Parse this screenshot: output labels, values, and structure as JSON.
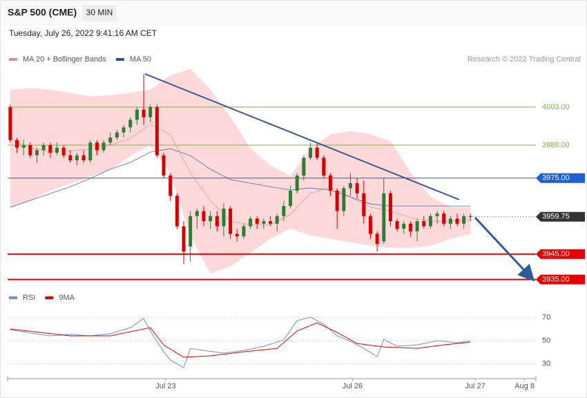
{
  "header": {
    "title": "S&P 500 (CME)",
    "interval": "30 MIN",
    "timestamp": "Tuesday, July 26, 2022 9:41:16 AM CET"
  },
  "chart_data": [
    {
      "type": "candlestick",
      "credit": "Research © 2022 Trading Central",
      "xlim": [
        -0.4,
        78.8
      ],
      "ylim": [
        3933.5,
        4018
      ],
      "up_color": "#2e7d32",
      "down_color": "#d50000",
      "candles": {
        "x": [
          0,
          1,
          2,
          3,
          4,
          5,
          6,
          7,
          8,
          9,
          10,
          11,
          12,
          13,
          14,
          15,
          16,
          17,
          18,
          19,
          20,
          21,
          22,
          23,
          24,
          25,
          26,
          27,
          28,
          29,
          30,
          31,
          32,
          33,
          34,
          35,
          36,
          37,
          38,
          39,
          40,
          41,
          42,
          43,
          44,
          45,
          46,
          47,
          48,
          49,
          50,
          51,
          52,
          53,
          54,
          55,
          56,
          57,
          58,
          59,
          60,
          61,
          62,
          63,
          64,
          65,
          66,
          67,
          68,
          69
        ],
        "open": [
          4003,
          3990,
          3987,
          3988,
          3984,
          3986,
          3988,
          3985,
          3987,
          3984,
          3982,
          3984,
          3982,
          3989,
          3986,
          3989,
          3991,
          3993,
          3995,
          3998,
          4002,
          3999,
          4003,
          3984,
          3976,
          3968,
          3956,
          3948,
          3960,
          3962,
          3958,
          3960,
          3956,
          3963,
          3953,
          3952,
          3956,
          3959,
          3957,
          3958,
          3957,
          3960,
          3964,
          3970,
          3976,
          3983,
          3987,
          3983,
          3976,
          3970,
          3962,
          3971,
          3973,
          3969,
          3960,
          3953,
          3950,
          3969,
          3958,
          3955,
          3957,
          3954,
          3958,
          3956,
          3960,
          3961,
          3957,
          3959,
          3957,
          3960
        ],
        "high": [
          4004,
          3991,
          3990,
          3989,
          3987,
          3989,
          3989,
          3989,
          3988,
          3986,
          3985,
          3986,
          3990,
          3990,
          3990,
          3993,
          3994,
          3996,
          3999,
          4003,
          4016,
          4004,
          4004,
          3985,
          3977,
          3969,
          3958,
          3962,
          3963,
          3964,
          3962,
          3962,
          3965,
          3964,
          3955,
          3957,
          3960,
          3960,
          3959,
          3960,
          3961,
          3966,
          3972,
          3977,
          3984,
          3989,
          3989,
          3984,
          3977,
          3971,
          3972,
          3977,
          3975,
          3974,
          3961,
          3954,
          3975,
          3970,
          3959,
          3958,
          3958,
          3959,
          3960,
          3961,
          3962,
          3962,
          3960,
          3961,
          3961,
          3961
        ],
        "low": [
          3989,
          3985,
          3984,
          3983,
          3981,
          3984,
          3983,
          3984,
          3983,
          3981,
          3980,
          3981,
          3981,
          3984,
          3985,
          3988,
          3990,
          3991,
          3993,
          3996,
          3996,
          3997,
          3983,
          3975,
          3966,
          3955,
          3941,
          3942,
          3955,
          3956,
          3955,
          3954,
          3952,
          3951,
          3950,
          3951,
          3955,
          3955,
          3955,
          3956,
          3954,
          3958,
          3963,
          3969,
          3974,
          3982,
          3982,
          3975,
          3968,
          3955,
          3960,
          3968,
          3967,
          3957,
          3951,
          3946,
          3949,
          3956,
          3954,
          3953,
          3952,
          3950,
          3955,
          3955,
          3957,
          3956,
          3955,
          3956,
          3955,
          3958
        ],
        "close": [
          3990,
          3987,
          3988,
          3984,
          3986,
          3988,
          3985,
          3987,
          3984,
          3982,
          3984,
          3982,
          3989,
          3986,
          3989,
          3991,
          3993,
          3995,
          3998,
          4002,
          3999,
          4003,
          3984,
          3976,
          3968,
          3956,
          3946,
          3960,
          3962,
          3958,
          3960,
          3956,
          3963,
          3953,
          3952,
          3956,
          3959,
          3957,
          3958,
          3957,
          3960,
          3964,
          3970,
          3976,
          3983,
          3987,
          3983,
          3976,
          3970,
          3962,
          3971,
          3973,
          3969,
          3960,
          3953,
          3949,
          3969,
          3958,
          3955,
          3957,
          3954,
          3958,
          3956,
          3960,
          3961,
          3957,
          3959,
          3957,
          3960,
          3959.75
        ]
      },
      "series": [
        {
          "name": "MA 20 + Bollinger Bands",
          "color": "#e88b8b",
          "band_color": "#fdd9d9",
          "x": [
            0,
            3,
            6,
            9,
            12,
            15,
            18,
            21,
            24,
            27,
            30,
            33,
            36,
            39,
            42,
            45,
            48,
            51,
            54,
            57,
            60,
            63,
            66,
            69
          ],
          "values": [
            3990.7,
            3986.6,
            3985.8,
            3985.8,
            3986.6,
            3988,
            3990.7,
            3996.2,
            3992.1,
            3977.1,
            3966.2,
            3958,
            3956.6,
            3956.6,
            3960.7,
            3968.9,
            3971.6,
            3967.5,
            3963.5,
            3962.1,
            3959.4,
            3958,
            3958,
            3958.6
          ],
          "upper": [
            4009.8,
            4010.4,
            4009.8,
            4008.5,
            4007.1,
            4007.6,
            4008.5,
            4009.8,
            4015.3,
            4018,
            4009.8,
            3998.9,
            3986.6,
            3979.8,
            3975.7,
            3986.6,
            3992.1,
            3993.5,
            3992.1,
            3989.4,
            3977.1,
            3967.5,
            3963.5,
            3963.5
          ],
          "lower": [
            3963.5,
            3966.2,
            3970.3,
            3973,
            3975.7,
            3978.5,
            3983.9,
            3988,
            3977.1,
            3952.5,
            3937.6,
            3940.3,
            3945.7,
            3951.2,
            3955.3,
            3952.5,
            3951.2,
            3949.8,
            3948.5,
            3947.6,
            3947.6,
            3948.5,
            3951.2,
            3953.1
          ]
        },
        {
          "name": "MA 50",
          "color": "#2f5496",
          "x": [
            0,
            3,
            6,
            9,
            12,
            15,
            18,
            21,
            24,
            27,
            30,
            33,
            36,
            39,
            42,
            45,
            48,
            51,
            54,
            57,
            60,
            63,
            66,
            69
          ],
          "values": [
            3963.5,
            3966.2,
            3968.9,
            3971.6,
            3974.9,
            3978.5,
            3981.2,
            3985.3,
            3986.6,
            3983.9,
            3978.5,
            3974.4,
            3973,
            3971.6,
            3970.3,
            3971.1,
            3970.3,
            3967.5,
            3964.8,
            3964,
            3964,
            3964,
            3964,
            3964
          ]
        }
      ],
      "levels": [
        {
          "value": 4003,
          "label": "4003.00",
          "color": "#7cb342",
          "line": "solid",
          "box": false
        },
        {
          "value": 3988,
          "label": "3988.00",
          "color": "#7cb342",
          "line": "solid",
          "box": false
        },
        {
          "value": 3975,
          "label": "3975.00",
          "color": "#1e5fd6",
          "line": "solid",
          "box": true
        },
        {
          "value": 3959.75,
          "label": "3959.75",
          "color": "#333333",
          "line": "dotted",
          "box": true
        },
        {
          "value": 3945,
          "label": "3945.00",
          "color": "#e60000",
          "line": "bold",
          "box": true
        },
        {
          "value": 3935,
          "label": "3935.00",
          "color": "#e60000",
          "line": "bold",
          "box": true
        }
      ],
      "annotations": [
        {
          "x": [
            20.2,
            67.3
          ],
          "y": [
            4016.1,
            3966.5
          ],
          "color": "#3a5a93",
          "arrow": false
        },
        {
          "x": [
            69.7,
            78.2
          ],
          "y": [
            3959.4,
            3935.4
          ],
          "color": "#2e5c9a",
          "arrow": true
        }
      ]
    },
    {
      "type": "line",
      "xlim": [
        -0.4,
        78.8
      ],
      "ylim": [
        22,
        79
      ],
      "yticks": [
        30,
        50,
        70
      ],
      "grid": true,
      "xticks": [
        {
          "value": 23.3,
          "label": "Jul 23"
        },
        {
          "value": 51.3,
          "label": "Jul 26"
        },
        {
          "value": 69.7,
          "label": "Jul 27"
        },
        {
          "value": 77.1,
          "label": "Aug 8"
        }
      ],
      "series": [
        {
          "name": "RSI",
          "color": "#6d8fdc",
          "x": [
            0,
            3,
            6,
            9,
            12,
            15,
            18,
            20,
            21,
            23,
            24,
            26,
            27,
            29,
            32,
            35,
            38,
            41,
            43,
            45,
            47,
            49,
            51,
            53,
            55,
            56,
            58,
            61,
            64,
            67,
            69
          ],
          "values": [
            59.6,
            56.6,
            54.2,
            55.4,
            54.2,
            56,
            61.3,
            69.1,
            58.4,
            40.4,
            33.3,
            26.7,
            43.4,
            41.6,
            39.3,
            41.6,
            45.2,
            50.6,
            67.3,
            70.3,
            64.3,
            54.2,
            49.4,
            43.4,
            36.3,
            51.2,
            45.2,
            46.4,
            50,
            48.2,
            50
          ]
        },
        {
          "name": "9MA",
          "color": "#e00000",
          "x": [
            0,
            9,
            15,
            21,
            23,
            26,
            30,
            35,
            40,
            43,
            46,
            49,
            52,
            56,
            61,
            65,
            69
          ],
          "values": [
            60.1,
            54.2,
            54.2,
            61.3,
            46.4,
            35.7,
            36.9,
            40.4,
            43.4,
            58.4,
            65.5,
            57.2,
            47.6,
            44.6,
            43.4,
            46.4,
            48.8
          ]
        }
      ]
    }
  ]
}
